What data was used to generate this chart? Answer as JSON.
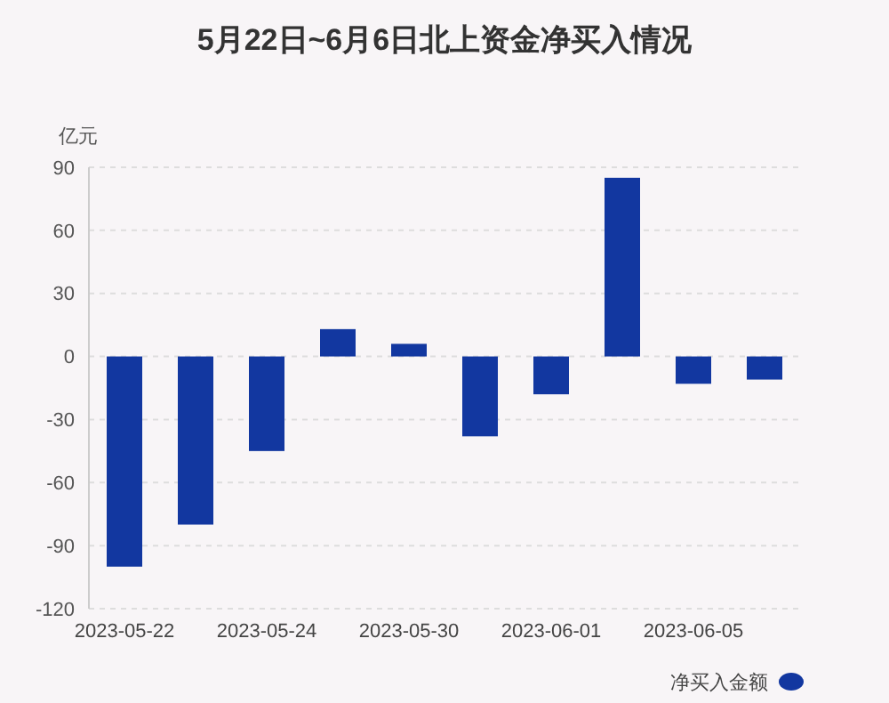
{
  "chart_data": {
    "type": "bar",
    "title": "5月22日~6月6日北上资金净买入情况",
    "ylabel": "亿元",
    "categories": [
      "2023-05-22",
      null,
      "2023-05-24",
      null,
      "2023-05-30",
      null,
      "2023-06-01",
      null,
      "2023-06-05",
      null
    ],
    "series": [
      {
        "name": "净买入金额",
        "color": "#1237a0",
        "values": [
          -100,
          -80,
          -45,
          13,
          6,
          -38,
          -18,
          85,
          -13,
          -11
        ]
      }
    ],
    "ylim": [
      -120,
      90
    ],
    "yticks": [
      -120,
      -90,
      -60,
      -30,
      0,
      30,
      60,
      90
    ],
    "grid": "y",
    "legend": "bottom right"
  }
}
